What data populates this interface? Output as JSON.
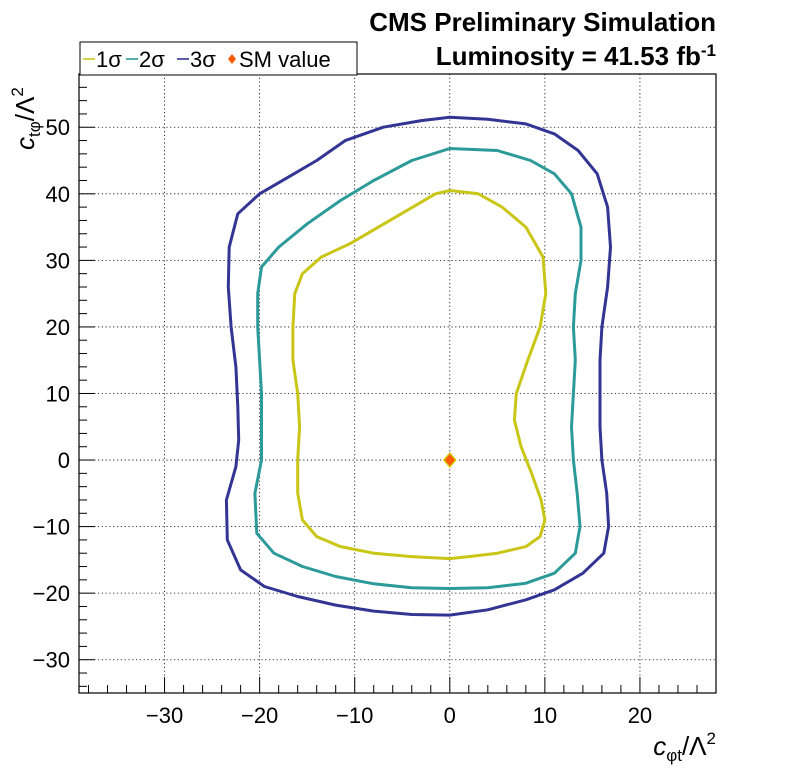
{
  "chart_data": {
    "type": "line",
    "title_line1": "CMS Preliminary Simulation",
    "title_line2_prefix": "Luminosity = 41.53 fb",
    "title_line2_sup": "-1",
    "xlabel": {
      "base": "c",
      "sub": "φt",
      "rest": "/Λ",
      "sup": "2"
    },
    "ylabel": {
      "base": "c",
      "sub": "tφ",
      "rest": "/Λ",
      "sup": "2"
    },
    "xlim": [
      -39,
      28
    ],
    "ylim": [
      -35,
      58
    ],
    "x_ticks": [
      -30,
      -20,
      -10,
      0,
      10,
      20
    ],
    "y_ticks": [
      -30,
      -20,
      -10,
      0,
      10,
      20,
      30,
      40,
      50
    ],
    "x_tick_labels": [
      "−30",
      "−20",
      "−10",
      "0",
      "10",
      "20"
    ],
    "y_tick_labels": [
      "−30",
      "−20",
      "−10",
      "0",
      "10",
      "20",
      "30",
      "40",
      "50"
    ],
    "grid": true,
    "legend": {
      "placement": "top-left",
      "entries": [
        {
          "label": "1σ",
          "color": "#c9c617"
        },
        {
          "label": "2σ",
          "color": "#2b9a98"
        },
        {
          "label": "3σ",
          "color": "#333595"
        },
        {
          "label": "SM value",
          "color": "#ff5a00"
        }
      ]
    },
    "sm_point": {
      "x": 0,
      "y": 0
    },
    "series": [
      {
        "name": "1σ",
        "color": "#c9c617",
        "points": [
          [
            0,
            40.5
          ],
          [
            3,
            40
          ],
          [
            5.5,
            38
          ],
          [
            8,
            35
          ],
          [
            9.8,
            30.5
          ],
          [
            10.1,
            25
          ],
          [
            9.5,
            20
          ],
          [
            8.2,
            15
          ],
          [
            7,
            10
          ],
          [
            6.8,
            6
          ],
          [
            7.5,
            2
          ],
          [
            8.6,
            -2
          ],
          [
            9.6,
            -6
          ],
          [
            10,
            -9
          ],
          [
            9.5,
            -11.5
          ],
          [
            8,
            -13
          ],
          [
            5,
            -14
          ],
          [
            2,
            -14.5
          ],
          [
            0,
            -14.8
          ],
          [
            -4,
            -14.5
          ],
          [
            -8,
            -14
          ],
          [
            -11.5,
            -13
          ],
          [
            -14,
            -11.5
          ],
          [
            -15.5,
            -9
          ],
          [
            -16,
            -5
          ],
          [
            -16,
            0
          ],
          [
            -15.8,
            5
          ],
          [
            -16,
            10
          ],
          [
            -16.5,
            15
          ],
          [
            -16.5,
            20
          ],
          [
            -16.3,
            25
          ],
          [
            -15.5,
            28
          ],
          [
            -13.5,
            30.5
          ],
          [
            -10.5,
            32.5
          ],
          [
            -7.5,
            35
          ],
          [
            -4.5,
            37.5
          ],
          [
            -1.5,
            40
          ],
          [
            0,
            40.5
          ]
        ]
      },
      {
        "name": "2σ",
        "color": "#2b9a98",
        "points": [
          [
            0,
            46.8
          ],
          [
            5,
            46.5
          ],
          [
            8.5,
            45
          ],
          [
            11,
            43
          ],
          [
            12.8,
            40
          ],
          [
            13.8,
            35
          ],
          [
            13.8,
            30
          ],
          [
            13.2,
            25
          ],
          [
            13,
            20
          ],
          [
            13.2,
            15
          ],
          [
            13,
            10
          ],
          [
            12.8,
            5
          ],
          [
            13,
            0
          ],
          [
            13.4,
            -5
          ],
          [
            13.7,
            -10
          ],
          [
            13.2,
            -14
          ],
          [
            11,
            -17
          ],
          [
            8,
            -18.5
          ],
          [
            4,
            -19.2
          ],
          [
            0,
            -19.3
          ],
          [
            -4,
            -19.2
          ],
          [
            -8,
            -18.6
          ],
          [
            -12,
            -17.5
          ],
          [
            -15.5,
            -16
          ],
          [
            -18.5,
            -14
          ],
          [
            -20.3,
            -11
          ],
          [
            -20.5,
            -5
          ],
          [
            -19.8,
            0
          ],
          [
            -19.8,
            5
          ],
          [
            -19.8,
            10
          ],
          [
            -20,
            15
          ],
          [
            -20.2,
            20
          ],
          [
            -20.2,
            25
          ],
          [
            -19.8,
            29
          ],
          [
            -18,
            32
          ],
          [
            -15,
            35.5
          ],
          [
            -11.5,
            39
          ],
          [
            -8,
            42
          ],
          [
            -4,
            45
          ],
          [
            0,
            46.8
          ]
        ]
      },
      {
        "name": "3σ",
        "color": "#333595",
        "points": [
          [
            0,
            51.5
          ],
          [
            4,
            51.2
          ],
          [
            8,
            50.5
          ],
          [
            11,
            49
          ],
          [
            13.5,
            46.5
          ],
          [
            15.5,
            43
          ],
          [
            16.6,
            38
          ],
          [
            16.9,
            32
          ],
          [
            16.6,
            26
          ],
          [
            16,
            20
          ],
          [
            15.8,
            15
          ],
          [
            15.8,
            10
          ],
          [
            15.8,
            5
          ],
          [
            16,
            0
          ],
          [
            16.5,
            -5
          ],
          [
            16.7,
            -10
          ],
          [
            16.2,
            -14
          ],
          [
            14,
            -17
          ],
          [
            11,
            -19.5
          ],
          [
            8,
            -21
          ],
          [
            4,
            -22.5
          ],
          [
            0,
            -23.3
          ],
          [
            -4,
            -23.2
          ],
          [
            -8,
            -22.7
          ],
          [
            -12,
            -21.8
          ],
          [
            -16,
            -20.5
          ],
          [
            -19.5,
            -19
          ],
          [
            -22,
            -16.5
          ],
          [
            -23.4,
            -12
          ],
          [
            -23.5,
            -6
          ],
          [
            -22.5,
            -1
          ],
          [
            -22.2,
            3
          ],
          [
            -22.3,
            8
          ],
          [
            -22.5,
            14
          ],
          [
            -23,
            20
          ],
          [
            -23.3,
            26
          ],
          [
            -23.2,
            32
          ],
          [
            -22.3,
            37
          ],
          [
            -20,
            40
          ],
          [
            -17,
            42.5
          ],
          [
            -14,
            45
          ],
          [
            -11,
            48
          ],
          [
            -7,
            50
          ],
          [
            -3,
            51
          ],
          [
            0,
            51.5
          ]
        ]
      }
    ]
  }
}
